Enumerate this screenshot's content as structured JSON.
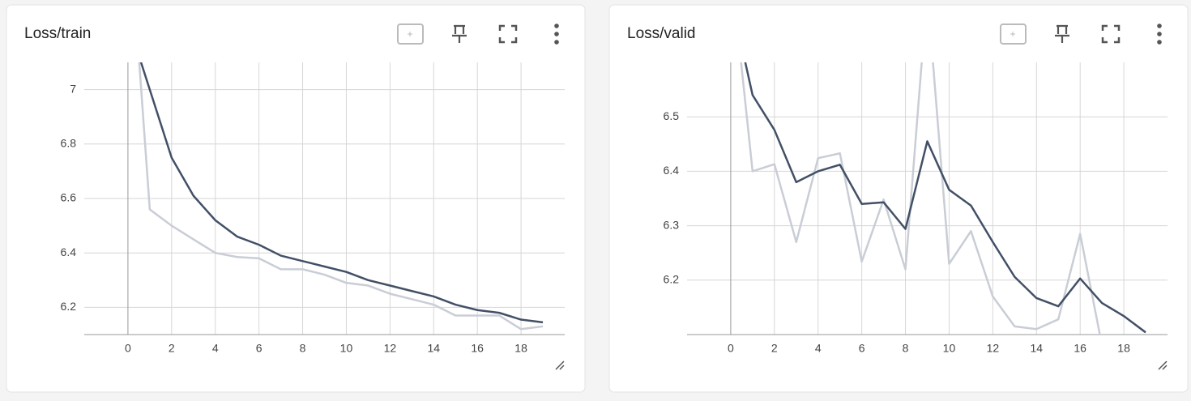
{
  "chart_data": [
    {
      "type": "line",
      "title": "Loss/train",
      "x": [
        0,
        1,
        2,
        3,
        4,
        5,
        6,
        7,
        8,
        9,
        10,
        11,
        12,
        13,
        14,
        15,
        16,
        17,
        18,
        19
      ],
      "series": [
        {
          "color": "#c9cdd5",
          "values": [
            7.68,
            6.56,
            6.5,
            6.45,
            6.4,
            6.385,
            6.38,
            6.34,
            6.34,
            6.32,
            6.29,
            6.28,
            6.25,
            6.23,
            6.21,
            6.17,
            6.17,
            6.17,
            6.12,
            6.13
          ]
        },
        {
          "color": "#425066",
          "values": [
            7.25,
            7.0,
            6.75,
            6.61,
            6.52,
            6.46,
            6.43,
            6.39,
            6.37,
            6.35,
            6.33,
            6.3,
            6.28,
            6.26,
            6.24,
            6.21,
            6.19,
            6.18,
            6.155,
            6.145
          ]
        }
      ],
      "xlim": [
        -2,
        20
      ],
      "xticks": [
        0,
        2,
        4,
        6,
        8,
        10,
        12,
        14,
        16,
        18
      ],
      "ylim": [
        6.1,
        7.1
      ],
      "yticks": [
        6.2,
        6.4,
        6.6,
        6.8,
        7
      ],
      "grid": true
    },
    {
      "type": "line",
      "title": "Loss/valid",
      "x": [
        0,
        1,
        2,
        3,
        4,
        5,
        6,
        7,
        8,
        9,
        10,
        11,
        12,
        13,
        14,
        15,
        16,
        17,
        18,
        19
      ],
      "series": [
        {
          "color": "#c9cdd5",
          "values": [
            6.78,
            6.4,
            6.413,
            6.27,
            6.424,
            6.433,
            6.234,
            6.348,
            6.22,
            6.73,
            6.23,
            6.29,
            6.17,
            6.115,
            6.11,
            6.128,
            6.285,
            6.08,
            6.07,
            6.05
          ]
        },
        {
          "color": "#425066",
          "values": [
            6.72,
            6.54,
            6.476,
            6.38,
            6.4,
            6.412,
            6.34,
            6.343,
            6.294,
            6.455,
            6.366,
            6.337,
            6.27,
            6.206,
            6.167,
            6.152,
            6.203,
            6.158,
            6.134,
            6.104
          ]
        }
      ],
      "xlim": [
        -2,
        20
      ],
      "xticks": [
        0,
        2,
        4,
        6,
        8,
        10,
        12,
        14,
        16,
        18
      ],
      "ylim": [
        6.1,
        6.6
      ],
      "yticks": [
        6.2,
        6.3,
        6.4,
        6.5
      ],
      "grid": true
    }
  ]
}
